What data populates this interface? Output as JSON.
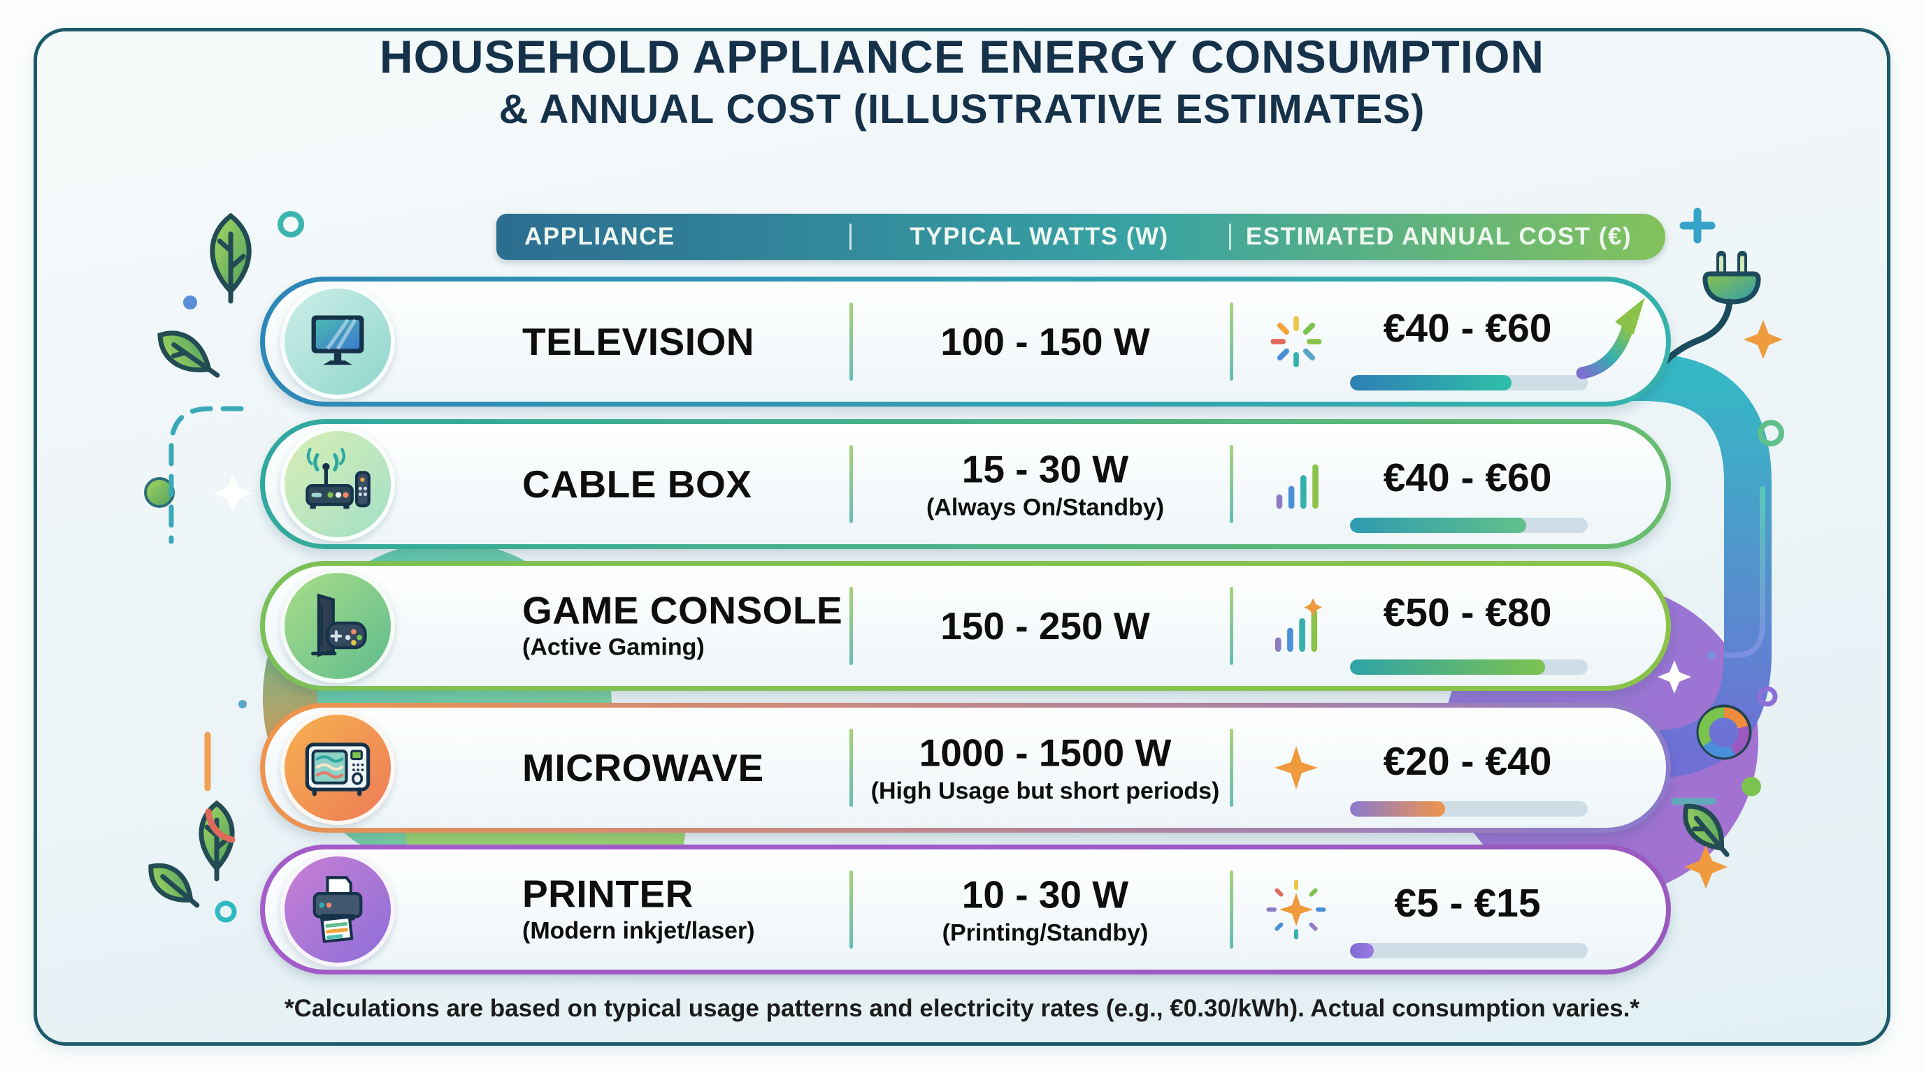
{
  "title": {
    "line1": "HOUSEHOLD APPLIANCE ENERGY CONSUMPTION",
    "line2": "& ANNUAL COST (ILLUSTRATIVE ESTIMATES)"
  },
  "table": {
    "headers": {
      "appliance": "APPLIANCE",
      "watts": "TYPICAL WATTS (W)",
      "cost": "ESTIMATED ANNUAL COST (€)"
    },
    "rows": [
      {
        "appliance": "TELEVISION",
        "appliance_note": "",
        "watts": "100 - 150 W",
        "watts_note": "",
        "cost": "€40 - €60",
        "cost_icon": "color-burst-icon",
        "cost_bar_pct": 68,
        "accent_from": "#2e86b8",
        "accent_to": "#35b3ab"
      },
      {
        "appliance": "CABLE BOX",
        "appliance_note": "",
        "watts": "15 - 30 W",
        "watts_note": "(Always On/Standby)",
        "cost": "€40 - €60",
        "cost_icon": "rising-bars-icon",
        "cost_bar_pct": 74,
        "accent_from": "#2fa8a0",
        "accent_to": "#6abd6e"
      },
      {
        "appliance": "GAME CONSOLE",
        "appliance_note": "(Active Gaming)",
        "watts": "150 - 250 W",
        "watts_note": "",
        "cost": "€50 - €80",
        "cost_icon": "rising-bars-sparkle-icon",
        "cost_bar_pct": 82,
        "accent_from": "#7bc058",
        "accent_to": "#8bc34a"
      },
      {
        "appliance": "MICROWAVE",
        "appliance_note": "",
        "watts": "1000 - 1500 W",
        "watts_note": "(High Usage but short periods)",
        "cost": "€20 - €40",
        "cost_icon": "sparkle-icon",
        "cost_bar_pct": 40,
        "accent_from": "#f0944a",
        "accent_to": "#8a7ad0"
      },
      {
        "appliance": "PRINTER",
        "appliance_note": "(Modern inkjet/laser)",
        "watts": "10 - 30 W",
        "watts_note": "(Printing/Standby)",
        "cost": "€5 - €15",
        "cost_icon": "sparkle-burst-icon",
        "cost_bar_pct": 10,
        "accent_from": "#a45cc8",
        "accent_to": "#9b59c0"
      }
    ]
  },
  "footnote": "*Calculations are based on typical usage patterns and electricity rates (e.g., €0.30/kWh). Actual consumption varies.*",
  "colors": {
    "frame_border": "#1d5a68",
    "title_text": "#16324a",
    "header_gradient": [
      "#2c6d90",
      "#38a2a4",
      "#83c25c"
    ],
    "background": "#ecf4f7"
  },
  "chart_data": {
    "type": "table",
    "title": "Household Appliance Energy Consumption & Annual Cost (Illustrative Estimates)",
    "columns": [
      "Appliance",
      "Typical Watts (W)",
      "Estimated Annual Cost (€)"
    ],
    "rows": [
      [
        "Television",
        "100 - 150 W",
        "€40 - €60"
      ],
      [
        "Cable Box (Always On/Standby)",
        "15 - 30 W",
        "€40 - €60"
      ],
      [
        "Game Console (Active Gaming)",
        "150 - 250 W",
        "€50 - €80"
      ],
      [
        "Microwave (High Usage but short periods)",
        "1000 - 1500 W",
        "€20 - €40"
      ],
      [
        "Printer (Modern inkjet/laser), Printing/Standby",
        "10 - 30 W",
        "€5 - €15"
      ]
    ],
    "cost_bar_fill_pct": [
      68,
      74,
      82,
      40,
      10
    ],
    "notes": "*Calculations are based on typical usage patterns and electricity rates (e.g., €0.30/kWh). Actual consumption varies.*"
  }
}
